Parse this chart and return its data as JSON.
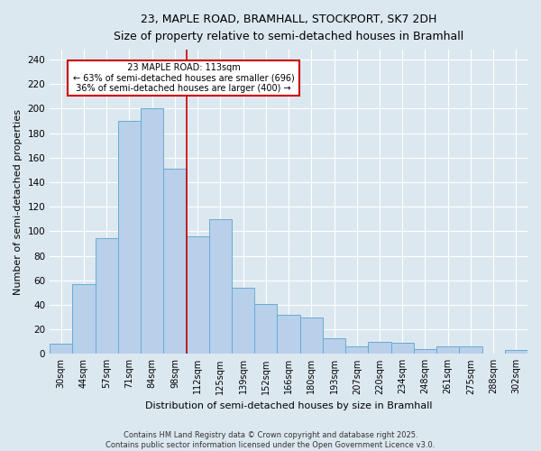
{
  "title_line1": "23, MAPLE ROAD, BRAMHALL, STOCKPORT, SK7 2DH",
  "title_line2": "Size of property relative to semi-detached houses in Bramhall",
  "xlabel": "Distribution of semi-detached houses by size in Bramhall",
  "ylabel": "Number of semi-detached properties",
  "categories": [
    "30sqm",
    "44sqm",
    "57sqm",
    "71sqm",
    "84sqm",
    "98sqm",
    "112sqm",
    "125sqm",
    "139sqm",
    "152sqm",
    "166sqm",
    "180sqm",
    "193sqm",
    "207sqm",
    "220sqm",
    "234sqm",
    "248sqm",
    "261sqm",
    "275sqm",
    "288sqm",
    "302sqm"
  ],
  "values": [
    8,
    57,
    94,
    190,
    200,
    151,
    96,
    110,
    54,
    41,
    32,
    30,
    13,
    6,
    10,
    9,
    4,
    6,
    6,
    0,
    3
  ],
  "bar_color": "#b8d0ea",
  "bar_edge_color": "#6aaad4",
  "vline_x": 5.5,
  "vline_color": "#cc0000",
  "highlight_label": "23 MAPLE ROAD: 113sqm",
  "highlight_smaller": "← 63% of semi-detached houses are smaller (696)",
  "highlight_larger": "36% of semi-detached houses are larger (400) →",
  "annotation_box_edgecolor": "#cc0000",
  "ylim_max": 248,
  "yticks": [
    0,
    20,
    40,
    60,
    80,
    100,
    120,
    140,
    160,
    180,
    200,
    220,
    240
  ],
  "fig_bg_color": "#dce8f0",
  "ax_bg_color": "#dce8f0",
  "grid_color": "#ffffff",
  "footer_line1": "Contains HM Land Registry data © Crown copyright and database right 2025.",
  "footer_line2": "Contains public sector information licensed under the Open Government Licence v3.0."
}
